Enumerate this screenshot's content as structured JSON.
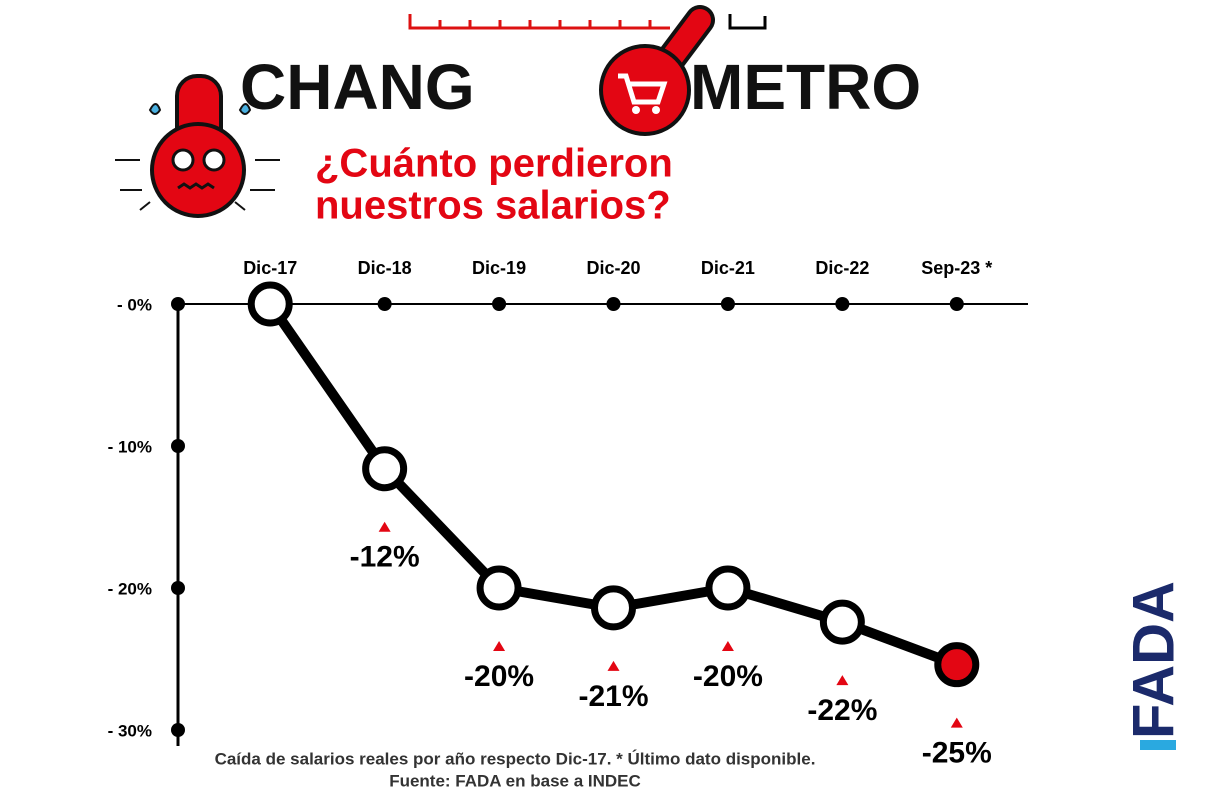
{
  "chart_data": {
    "type": "line",
    "brand": [
      "CHANG",
      "METRO"
    ],
    "subtitle": [
      "¿Cuánto perdieron",
      "nuestros salarios?"
    ],
    "categories": [
      "Dic-17",
      "Dic-18",
      "Dic-19",
      "Dic-20",
      "Dic-21",
      "Dic-22",
      "Sep-23 *"
    ],
    "values": [
      0,
      -11.6,
      -20,
      -21.4,
      -20,
      -22.4,
      -25.4
    ],
    "value_labels": [
      null,
      "-12%",
      "-20%",
      "-21%",
      "-20%",
      "-22%",
      "-25%"
    ],
    "color": "#000000",
    "highlight_color": "#e30613",
    "ylim": [
      -30,
      0
    ],
    "yticks": [
      {
        "value": 0,
        "label": "- 0%"
      },
      {
        "value": -10,
        "label": "- 10%"
      },
      {
        "value": -20,
        "label": "- 20%"
      },
      {
        "value": -30,
        "label": "- 30%"
      }
    ],
    "note": "Caída de salarios reales por año respecto Dic-17. * Último dato disponible.",
    "source": "Fuente: FADA en base a INDEC",
    "logo": "FADA"
  }
}
